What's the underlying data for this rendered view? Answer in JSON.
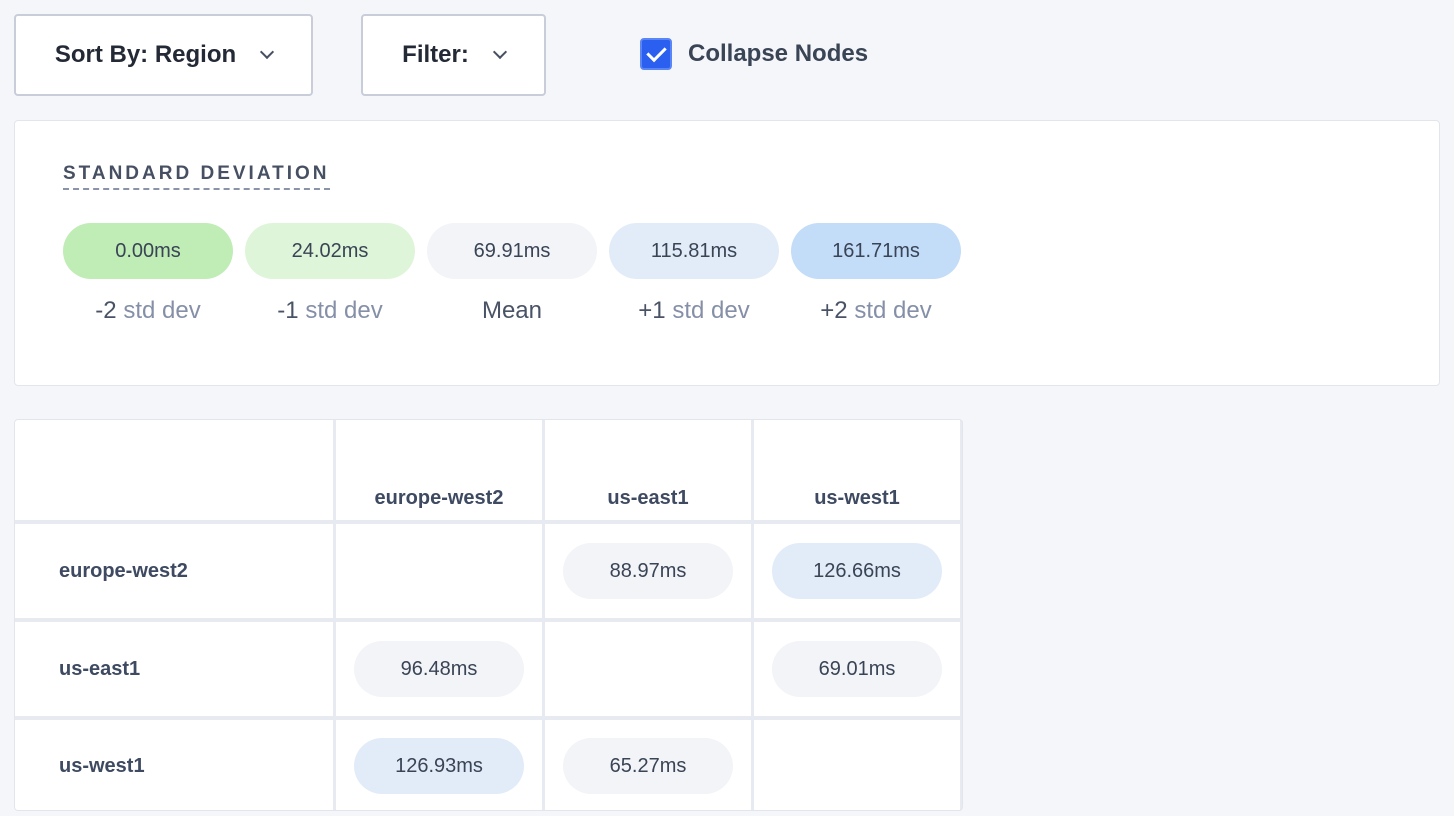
{
  "toolbar": {
    "sort_label": "Sort By: Region",
    "filter_label": "Filter:",
    "collapse_label": "Collapse Nodes",
    "collapse_checked": true
  },
  "legend": {
    "title": "STANDARD DEVIATION",
    "items": [
      {
        "value": "0.00ms",
        "prefix": "-2",
        "suffix": "std dev",
        "color": "#c0ecb6"
      },
      {
        "value": "24.02ms",
        "prefix": "-1",
        "suffix": "std dev",
        "color": "#dff5d9"
      },
      {
        "value": "69.91ms",
        "prefix": "Mean",
        "suffix": "",
        "color": "#f3f4f8"
      },
      {
        "value": "115.81ms",
        "prefix": "+1",
        "suffix": "std dev",
        "color": "#e2ecf8"
      },
      {
        "value": "161.71ms",
        "prefix": "+2",
        "suffix": "std dev",
        "color": "#c3dcf8"
      }
    ]
  },
  "matrix": {
    "columns": [
      "europe-west2",
      "us-east1",
      "us-west1"
    ],
    "rows": [
      {
        "label": "europe-west2",
        "cells": [
          "",
          "88.97ms",
          "126.66ms"
        ],
        "colors": [
          "",
          "#f3f4f8",
          "#e2ecf8"
        ]
      },
      {
        "label": "us-east1",
        "cells": [
          "96.48ms",
          "",
          "69.01ms"
        ],
        "colors": [
          "#f3f4f8",
          "",
          "#f3f4f8"
        ]
      },
      {
        "label": "us-west1",
        "cells": [
          "126.93ms",
          "65.27ms",
          ""
        ],
        "colors": [
          "#e2ecf8",
          "#f3f4f8",
          ""
        ]
      }
    ]
  }
}
